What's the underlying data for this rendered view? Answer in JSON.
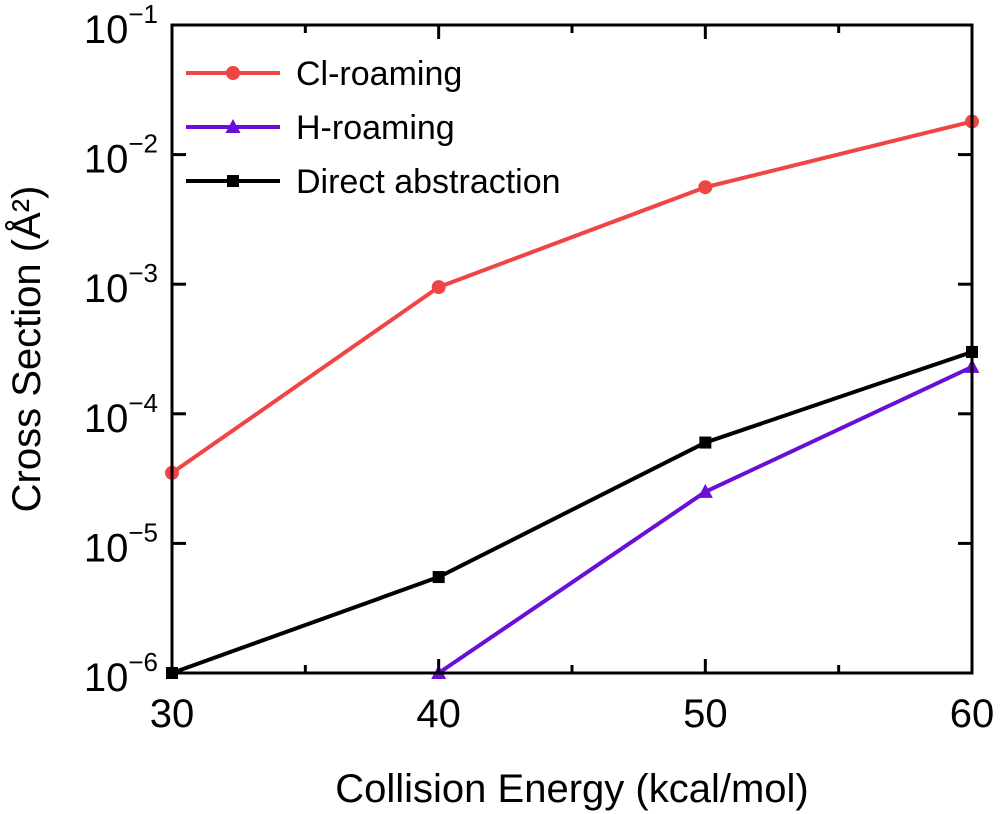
{
  "chart_data": {
    "type": "line",
    "title": "",
    "xlabel": "Collision Energy (kcal/mol)",
    "ylabel": "Cross Section (Å²)",
    "xscale": "linear",
    "yscale": "log",
    "xlim": [
      30,
      60
    ],
    "ylim": [
      1e-06,
      0.1
    ],
    "xticks": [
      30,
      40,
      50,
      60
    ],
    "xtick_labels": [
      "30",
      "40",
      "50",
      "60"
    ],
    "yticks": [
      1e-06,
      1e-05,
      0.0001,
      0.001,
      0.01,
      0.1
    ],
    "ytick_labels": [
      {
        "base": "10",
        "exp": "−6"
      },
      {
        "base": "10",
        "exp": "−5"
      },
      {
        "base": "10",
        "exp": "−4"
      },
      {
        "base": "10",
        "exp": "−3"
      },
      {
        "base": "10",
        "exp": "−2"
      },
      {
        "base": "10",
        "exp": "−1"
      }
    ],
    "grid": false,
    "legend_position": "top-left",
    "series": [
      {
        "name": "Cl-roaming",
        "color": "#f04545",
        "marker": "circle",
        "x": [
          30,
          40,
          50,
          60
        ],
        "y": [
          3.5e-05,
          0.00095,
          0.0056,
          0.018
        ]
      },
      {
        "name": "H-roaming",
        "color": "#6a0fd6",
        "marker": "triangle",
        "x": [
          40,
          50,
          60
        ],
        "y": [
          1e-06,
          2.5e-05,
          0.00023
        ]
      },
      {
        "name": "Direct abstraction",
        "color": "#000000",
        "marker": "square",
        "x": [
          30,
          40,
          50,
          60
        ],
        "y": [
          1e-06,
          5.5e-06,
          6e-05,
          0.0003
        ]
      }
    ]
  }
}
